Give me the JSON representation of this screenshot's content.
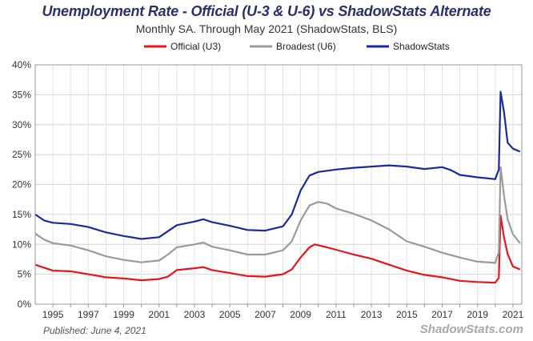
{
  "chart_data": {
    "type": "line",
    "title": "Unemployment Rate - Official (U-3 & U-6) vs ShadowStats Alternate",
    "subtitle": "Monthly SA. Through May 2021  (ShadowStats, BLS)",
    "x_tick_labels": [
      "1995",
      "1997",
      "1999",
      "2001",
      "2003",
      "2005",
      "2007",
      "2009",
      "2011",
      "2013",
      "2015",
      "2017",
      "2019",
      "2021"
    ],
    "x_range": [
      1994.0,
      2021.5
    ],
    "y_tick_labels": [
      "0%",
      "5%",
      "10%",
      "15%",
      "20%",
      "25%",
      "30%",
      "35%",
      "40%"
    ],
    "y_ticks": [
      0,
      5,
      10,
      15,
      20,
      25,
      30,
      35,
      40
    ],
    "ylim": [
      0,
      40
    ],
    "grid": true,
    "legend_position": "top-center",
    "series": [
      {
        "name": "Official (U3)",
        "color": "#e8141c",
        "points": [
          [
            1994.0,
            6.6
          ],
          [
            1994.5,
            6.1
          ],
          [
            1995.0,
            5.6
          ],
          [
            1996.0,
            5.5
          ],
          [
            1997.0,
            5.0
          ],
          [
            1998.0,
            4.5
          ],
          [
            1999.0,
            4.3
          ],
          [
            2000.0,
            4.0
          ],
          [
            2001.0,
            4.2
          ],
          [
            2001.5,
            4.6
          ],
          [
            2002.0,
            5.7
          ],
          [
            2003.0,
            6.0
          ],
          [
            2003.5,
            6.2
          ],
          [
            2004.0,
            5.7
          ],
          [
            2005.0,
            5.2
          ],
          [
            2006.0,
            4.7
          ],
          [
            2007.0,
            4.6
          ],
          [
            2008.0,
            5.0
          ],
          [
            2008.5,
            5.8
          ],
          [
            2009.0,
            7.8
          ],
          [
            2009.5,
            9.5
          ],
          [
            2009.8,
            10.0
          ],
          [
            2010.5,
            9.5
          ],
          [
            2011.0,
            9.1
          ],
          [
            2012.0,
            8.3
          ],
          [
            2013.0,
            7.6
          ],
          [
            2014.0,
            6.6
          ],
          [
            2015.0,
            5.6
          ],
          [
            2016.0,
            4.9
          ],
          [
            2017.0,
            4.5
          ],
          [
            2018.0,
            3.9
          ],
          [
            2019.0,
            3.7
          ],
          [
            2020.0,
            3.6
          ],
          [
            2020.2,
            4.4
          ],
          [
            2020.3,
            14.8
          ],
          [
            2020.5,
            11.1
          ],
          [
            2020.7,
            8.4
          ],
          [
            2021.0,
            6.3
          ],
          [
            2021.4,
            5.8
          ]
        ]
      },
      {
        "name": "Broadest (U6)",
        "color": "#9a9a9a",
        "points": [
          [
            1994.0,
            11.8
          ],
          [
            1994.5,
            10.8
          ],
          [
            1995.0,
            10.2
          ],
          [
            1996.0,
            9.8
          ],
          [
            1997.0,
            9.0
          ],
          [
            1998.0,
            8.0
          ],
          [
            1999.0,
            7.4
          ],
          [
            2000.0,
            7.0
          ],
          [
            2001.0,
            7.3
          ],
          [
            2001.5,
            8.3
          ],
          [
            2002.0,
            9.5
          ],
          [
            2003.0,
            10.0
          ],
          [
            2003.5,
            10.3
          ],
          [
            2004.0,
            9.6
          ],
          [
            2005.0,
            9.0
          ],
          [
            2006.0,
            8.3
          ],
          [
            2007.0,
            8.3
          ],
          [
            2008.0,
            9.0
          ],
          [
            2008.5,
            10.5
          ],
          [
            2009.0,
            14.0
          ],
          [
            2009.5,
            16.5
          ],
          [
            2010.0,
            17.1
          ],
          [
            2010.5,
            16.8
          ],
          [
            2011.0,
            16.0
          ],
          [
            2012.0,
            15.1
          ],
          [
            2013.0,
            14.0
          ],
          [
            2014.0,
            12.5
          ],
          [
            2015.0,
            10.5
          ],
          [
            2016.0,
            9.6
          ],
          [
            2017.0,
            8.6
          ],
          [
            2018.0,
            7.8
          ],
          [
            2019.0,
            7.1
          ],
          [
            2020.0,
            6.9
          ],
          [
            2020.2,
            8.7
          ],
          [
            2020.3,
            22.9
          ],
          [
            2020.5,
            18.0
          ],
          [
            2020.7,
            14.2
          ],
          [
            2021.0,
            11.7
          ],
          [
            2021.4,
            10.2
          ]
        ]
      },
      {
        "name": "ShadowStats",
        "color": "#1a2a9e",
        "points": [
          [
            1994.0,
            15.0
          ],
          [
            1994.5,
            14.0
          ],
          [
            1995.0,
            13.6
          ],
          [
            1996.0,
            13.4
          ],
          [
            1997.0,
            12.9
          ],
          [
            1998.0,
            12.0
          ],
          [
            1999.0,
            11.4
          ],
          [
            2000.0,
            10.9
          ],
          [
            2001.0,
            11.2
          ],
          [
            2001.5,
            12.2
          ],
          [
            2002.0,
            13.2
          ],
          [
            2003.0,
            13.8
          ],
          [
            2003.5,
            14.2
          ],
          [
            2004.0,
            13.7
          ],
          [
            2005.0,
            13.1
          ],
          [
            2006.0,
            12.4
          ],
          [
            2007.0,
            12.3
          ],
          [
            2008.0,
            13.0
          ],
          [
            2008.5,
            15.0
          ],
          [
            2009.0,
            19.0
          ],
          [
            2009.5,
            21.5
          ],
          [
            2010.0,
            22.1
          ],
          [
            2011.0,
            22.5
          ],
          [
            2012.0,
            22.8
          ],
          [
            2013.0,
            23.0
          ],
          [
            2014.0,
            23.2
          ],
          [
            2015.0,
            23.0
          ],
          [
            2016.0,
            22.6
          ],
          [
            2017.0,
            22.9
          ],
          [
            2017.5,
            22.4
          ],
          [
            2018.0,
            21.6
          ],
          [
            2019.0,
            21.2
          ],
          [
            2020.0,
            20.9
          ],
          [
            2020.2,
            22.5
          ],
          [
            2020.3,
            35.5
          ],
          [
            2020.5,
            32.0
          ],
          [
            2020.7,
            27.0
          ],
          [
            2021.0,
            26.0
          ],
          [
            2021.4,
            25.5
          ]
        ]
      }
    ]
  },
  "footer": {
    "published": "Published: June 4, 2021",
    "watermark": "ShadowStats.com"
  }
}
